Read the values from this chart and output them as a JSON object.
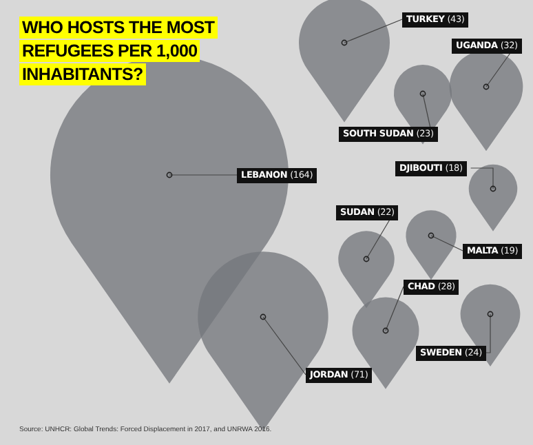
{
  "chart_data": {
    "type": "other",
    "title": "WHO HOSTS THE MOST REFUGEES PER 1,000 INHABITANTS?",
    "categories": [
      "LEBANON",
      "JORDAN",
      "TURKEY",
      "UGANDA",
      "SOUTH SUDAN",
      "DJIBOUTI",
      "SUDAN",
      "MALTA",
      "CHAD",
      "SWEDEN"
    ],
    "values": [
      164,
      71,
      43,
      32,
      23,
      18,
      22,
      19,
      28,
      24
    ],
    "value_labels": [
      "(164)",
      "(71)",
      "(43)",
      "(32)",
      "(23)",
      "(18)",
      "(22)",
      "(19)",
      "(28)",
      "(24)"
    ],
    "annotations": [
      "Source: UNHCR: Global Trends: Forced Displacement in 2017, and UNRWA 2016."
    ]
  }
}
